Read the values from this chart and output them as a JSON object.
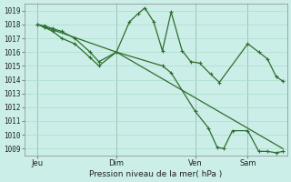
{
  "background_color": "#cceee8",
  "grid_color": "#aaddcc",
  "line_color": "#2d6e2d",
  "marker_color": "#2d6e2d",
  "xlabel_text": "Pression niveau de la mer( hPa )",
  "yticks": [
    1009,
    1010,
    1011,
    1012,
    1013,
    1014,
    1015,
    1016,
    1017,
    1018,
    1019
  ],
  "ylim": [
    1008.5,
    1019.5
  ],
  "xtick_labels": [
    "Jeu",
    "Dim",
    "Ven",
    "Sam"
  ],
  "xtick_positions": [
    0,
    72,
    144,
    192
  ],
  "xlim": [
    -12,
    228
  ],
  "series1_x": [
    0,
    6,
    14,
    22,
    34,
    48,
    56,
    72,
    84,
    92,
    98,
    106,
    114,
    122,
    132,
    140,
    148,
    158,
    166,
    192,
    202,
    210,
    218,
    224
  ],
  "series1_y": [
    1018.0,
    1017.9,
    1017.7,
    1017.5,
    1017.0,
    1016.0,
    1015.3,
    1016.0,
    1018.2,
    1018.8,
    1019.2,
    1018.2,
    1016.1,
    1018.9,
    1016.1,
    1015.3,
    1015.2,
    1014.4,
    1013.8,
    1016.6,
    1016.0,
    1015.5,
    1014.2,
    1013.9
  ],
  "series2_x": [
    0,
    6,
    14,
    22,
    34,
    48,
    56,
    72,
    114,
    122,
    144,
    156,
    164,
    170,
    178,
    192,
    202,
    210,
    218,
    224
  ],
  "series2_y": [
    1018.0,
    1017.8,
    1017.5,
    1017.0,
    1016.6,
    1015.6,
    1015.0,
    1016.0,
    1015.0,
    1014.5,
    1011.7,
    1010.5,
    1009.1,
    1009.0,
    1010.3,
    1010.3,
    1008.8,
    1008.8,
    1008.7,
    1008.8
  ],
  "series3_x": [
    0,
    72,
    224
  ],
  "series3_y": [
    1018.0,
    1016.0,
    1009.0
  ],
  "vline_positions": [
    0,
    72,
    144,
    192
  ]
}
